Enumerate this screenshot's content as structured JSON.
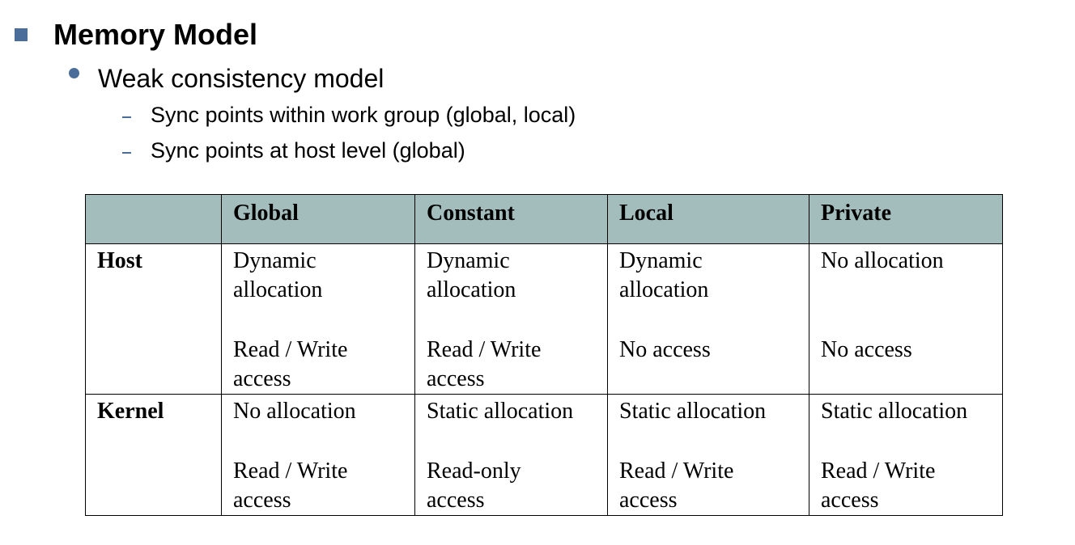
{
  "colors": {
    "accent": "#4a6e99",
    "header_fill": "#a3bdbd",
    "border": "#000000"
  },
  "icons": {
    "level1": "square-bullet-icon",
    "level2": "dot-bullet-icon",
    "level3": "dash-bullet-icon"
  },
  "slide": {
    "title": "Memory Model",
    "bullet": "Weak consistency model",
    "subbullets": [
      "Sync points within work group (global, local)",
      "Sync points at host level (global)"
    ]
  },
  "table": {
    "columns": [
      "",
      "Global",
      "Constant",
      "Local",
      "Private"
    ],
    "rows": [
      {
        "label": "Host",
        "cells": [
          {
            "allocation": [
              "Dynamic",
              "allocation"
            ],
            "access": [
              "Read / Write",
              "access"
            ]
          },
          {
            "allocation": [
              "Dynamic",
              "allocation"
            ],
            "access": [
              "Read / Write",
              "access"
            ]
          },
          {
            "allocation": [
              "Dynamic",
              "allocation"
            ],
            "access": [
              "No access"
            ]
          },
          {
            "allocation": [
              "No allocation"
            ],
            "access": [
              "No access"
            ]
          }
        ]
      },
      {
        "label": "Kernel",
        "cells": [
          {
            "allocation": [
              "No allocation"
            ],
            "access": [
              "Read / Write",
              "access"
            ]
          },
          {
            "allocation": [
              "Static allocation"
            ],
            "access": [
              "Read-only",
              "access"
            ]
          },
          {
            "allocation": [
              "Static allocation"
            ],
            "access": [
              "Read / Write",
              "access"
            ]
          },
          {
            "allocation": [
              "Static allocation"
            ],
            "access": [
              "Read / Write",
              "access"
            ]
          }
        ]
      }
    ]
  }
}
